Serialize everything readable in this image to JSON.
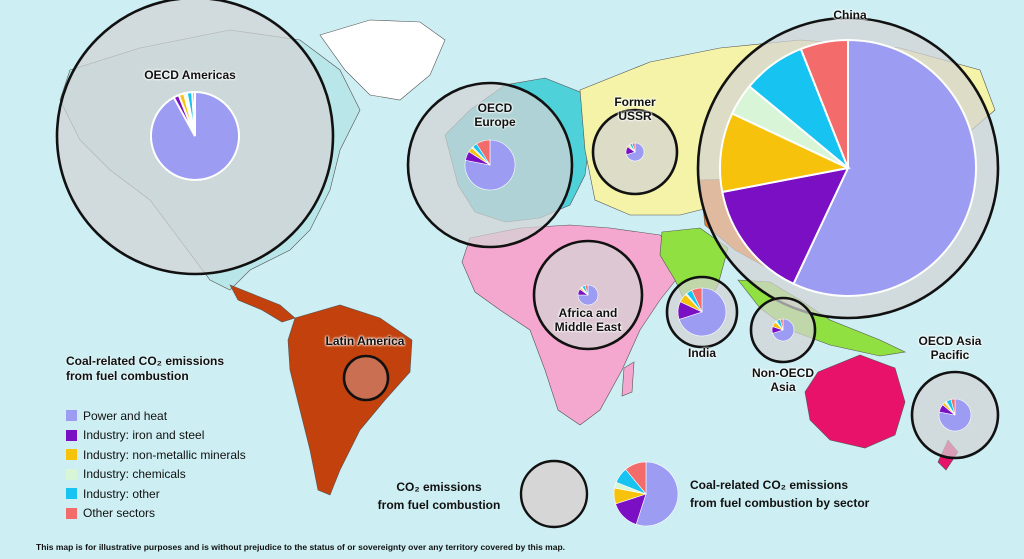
{
  "legend": {
    "title": "Coal-related CO₂ emissions\nfrom fuel combustion",
    "items": [
      {
        "label": "Power and heat",
        "color": "#9b9cf2"
      },
      {
        "label": "Industry: iron and steel",
        "color": "#7b0fc4"
      },
      {
        "label": "Industry: non-metallic minerals",
        "color": "#f7c20c"
      },
      {
        "label": "Industry: chemicals",
        "color": "#d9f5d8"
      },
      {
        "label": "Industry: other",
        "color": "#17c3f0"
      },
      {
        "label": "Other sectors",
        "color": "#f46b6b"
      }
    ]
  },
  "regions": [
    {
      "name": "China",
      "shares": [
        57,
        15,
        10,
        4,
        8,
        6
      ]
    },
    {
      "name": "OECD Americas",
      "shares": [
        92,
        2,
        2,
        1,
        2,
        1
      ]
    },
    {
      "name": "OECD\nEurope",
      "shares": [
        78,
        6,
        3,
        1,
        3,
        9
      ]
    },
    {
      "name": "Former\nUSSR",
      "shares": [
        70,
        15,
        3,
        2,
        5,
        5
      ]
    },
    {
      "name": "Africa and\nMiddle East",
      "shares": [
        75,
        10,
        3,
        2,
        5,
        5
      ]
    },
    {
      "name": "India",
      "shares": [
        70,
        12,
        6,
        1,
        4,
        7
      ]
    },
    {
      "name": "Non-OECD\nAsia",
      "shares": [
        70,
        10,
        8,
        2,
        6,
        4
      ]
    },
    {
      "name": "OECD Asia\nPacific",
      "shares": [
        78,
        8,
        3,
        2,
        5,
        4
      ]
    },
    {
      "name": "Latin America",
      "shares": []
    }
  ],
  "key": {
    "total_label": "CO₂ emissions\nfrom fuel combustion",
    "coal_label": "Coal-related CO₂ emissions\nfrom fuel combustion by sector",
    "sample_shares": [
      55,
      15,
      8,
      3,
      8,
      11
    ]
  },
  "disclaimer": "This map is for illustrative purposes and is without prejudice to the status of or sovereignty over any territory covered by this map."
}
